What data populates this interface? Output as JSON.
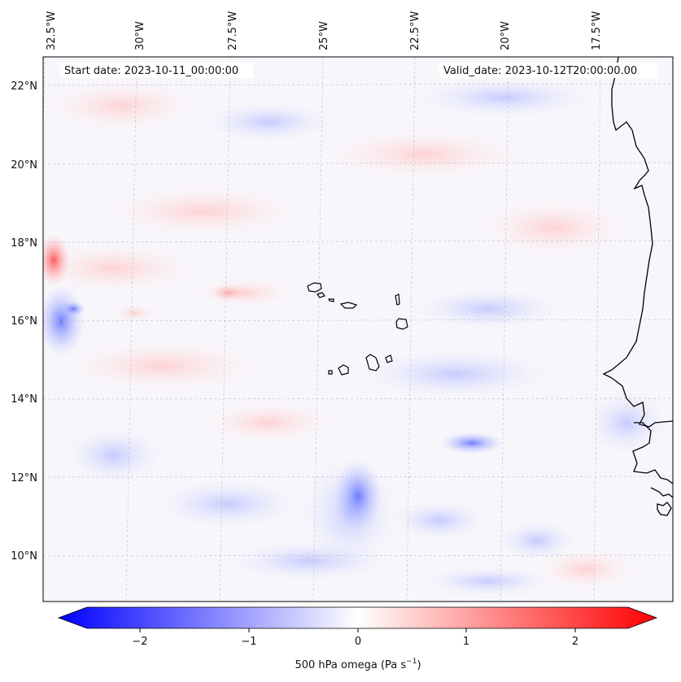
{
  "map": {
    "header": {
      "start_date": "Start date: 2023-10-11_00:00:00",
      "valid_date": "Valid_date: 2023-10-12T20:00:00.00"
    },
    "lon_labels": [
      "32.5°W",
      "30°W",
      "27.5°W",
      "25°W",
      "22.5°W",
      "20°W",
      "17.5°W"
    ],
    "lat_labels": [
      "22°N",
      "20°N",
      "18°N",
      "16°N",
      "14°N",
      "12°N",
      "10°N"
    ],
    "field": "500 hPa omega",
    "coastline_color": "#000000",
    "grid_color": "#bbbbbb"
  },
  "colorbar": {
    "label_prefix": "500 hPa omega (Pa s",
    "label_exp": "−1",
    "label_suffix": ")",
    "ticks": [
      "−2",
      "−1",
      "0",
      "1",
      "2"
    ],
    "range": [
      -2.75,
      2.75
    ],
    "low_color": "#0000ff",
    "mid_color": "#ffffff",
    "high_color": "#ff0000"
  }
}
